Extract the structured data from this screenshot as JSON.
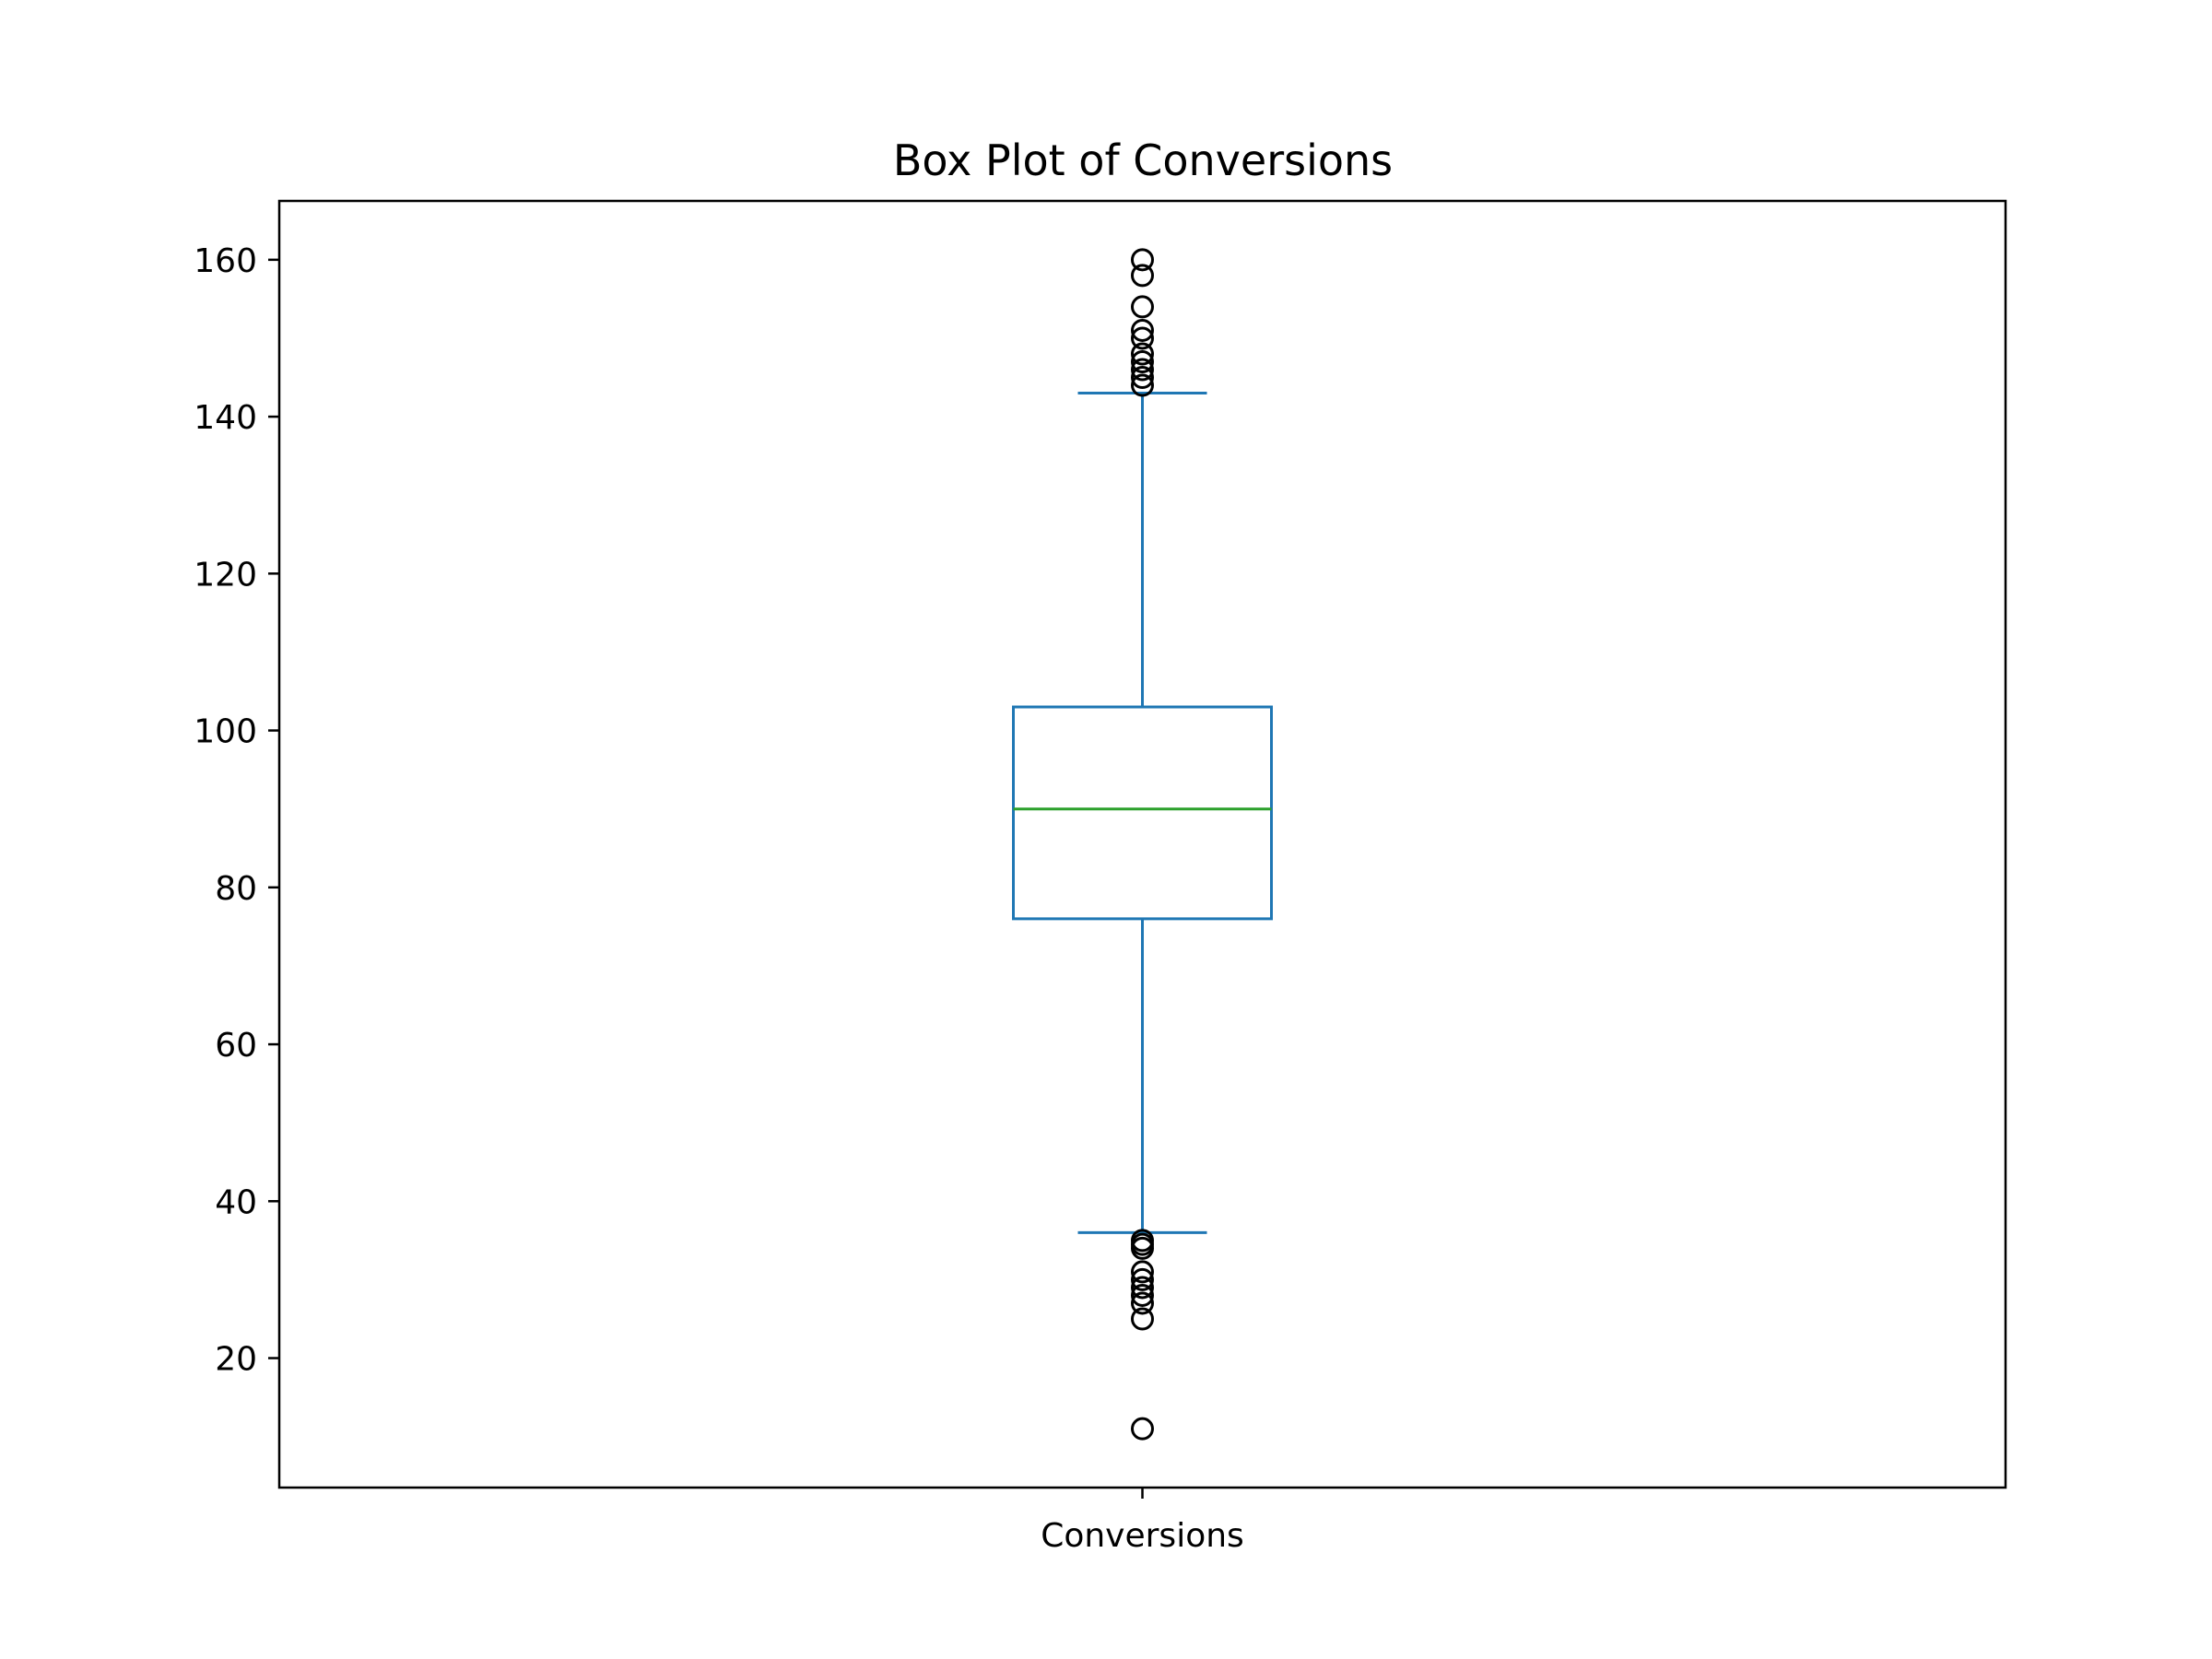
{
  "chart_data": {
    "type": "box",
    "title": "Box Plot of Conversions",
    "xlabel": "",
    "ylabel": "",
    "categories": [
      "Conversions"
    ],
    "ylim": [
      3.5,
      167.5
    ],
    "yticks": [
      20,
      40,
      60,
      80,
      100,
      120,
      140,
      160
    ],
    "grid": false,
    "boxes": [
      {
        "category": "Conversions",
        "whisker_low": 36,
        "q1": 76,
        "median": 90,
        "q3": 103,
        "whisker_high": 143,
        "outliers": [
          160,
          158,
          154,
          151,
          150,
          148,
          147,
          146,
          145,
          144,
          35,
          34.5,
          34,
          31,
          30,
          29,
          28,
          27,
          25,
          11
        ]
      }
    ],
    "colors": {
      "box": "#1f77b4",
      "median": "#2ca02c",
      "outlier": "#000000",
      "axis": "#000000"
    }
  }
}
